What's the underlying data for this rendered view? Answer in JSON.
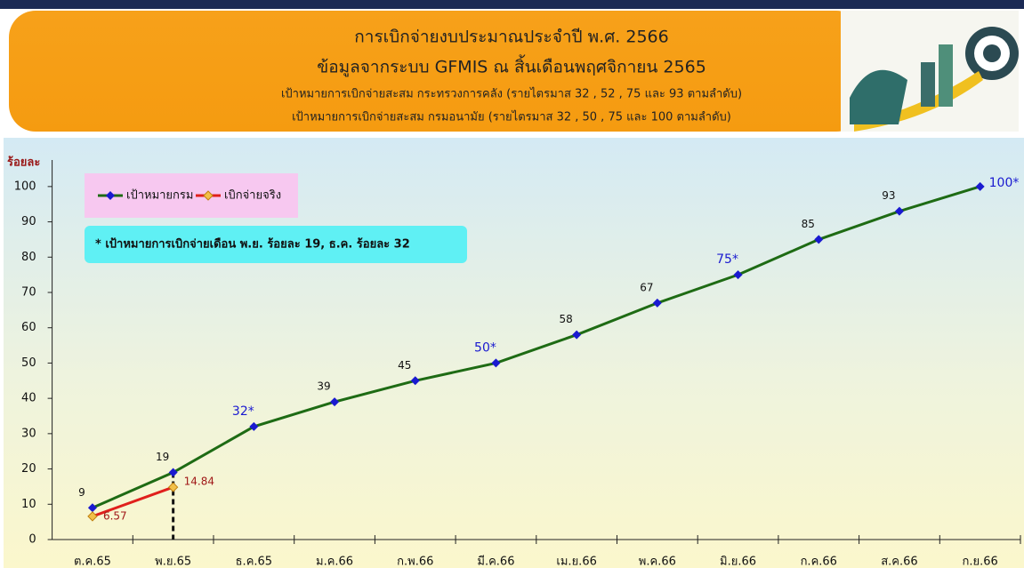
{
  "chart_data": {
    "type": "line",
    "title": "การเบิกจ่ายงบประมาณประจำปี พ.ศ. 2566",
    "subtitle": "ข้อมูลจากระบบ GFMIS  ณ  สิ้นเดือนพฤศจิกายน 2565",
    "notes": [
      "เป้าหมายการเบิกจ่ายสะสม กระทรวงการคลัง (รายไตรมาส  32 , 52 , 75 และ 93 ตามลำดับ)",
      "เป้าหมายการเบิกจ่ายสะสม กรมอนามัย (รายไตรมาส  32 , 50 , 75 และ 100 ตามลำดับ)"
    ],
    "annotation": "* เป้าหมายการเบิกจ่ายเดือน พ.ย. ร้อยละ 19, ธ.ค. ร้อยละ 32",
    "y_label": "ร้อยละ",
    "categories": [
      "ต.ค.65",
      "พ.ย.65",
      "ธ.ค.65",
      "ม.ค.66",
      "ก.พ.66",
      "มี.ค.66",
      "เม.ย.66",
      "พ.ค.66",
      "มิ.ย.66",
      "ก.ค.66",
      "ส.ค.66",
      "ก.ย.66"
    ],
    "series": [
      {
        "name": "เป้าหมายกรม",
        "color": "#1e6b14",
        "marker_color": "#1a1ad0",
        "values": [
          9,
          19,
          32,
          39,
          45,
          50,
          58,
          67,
          75,
          85,
          93,
          100
        ],
        "value_labels": [
          "9",
          "19",
          "32*",
          "39",
          "45",
          "50*",
          "58",
          "67",
          "75*",
          "85",
          "93",
          "100*"
        ]
      },
      {
        "name": "เบิกจ่ายจริง",
        "color": "#e0201c",
        "marker_color": "#f2c048",
        "values": [
          6.57,
          14.84,
          null,
          null,
          null,
          null,
          null,
          null,
          null,
          null,
          null,
          null
        ],
        "value_labels": [
          "6.57",
          "14.84",
          null,
          null,
          null,
          null,
          null,
          null,
          null,
          null,
          null,
          null
        ]
      }
    ],
    "ylim": [
      0,
      105
    ],
    "yticks": [
      0,
      10,
      20,
      30,
      40,
      50,
      60,
      70,
      80,
      90,
      100
    ],
    "legend": "top-left",
    "grid": false
  }
}
